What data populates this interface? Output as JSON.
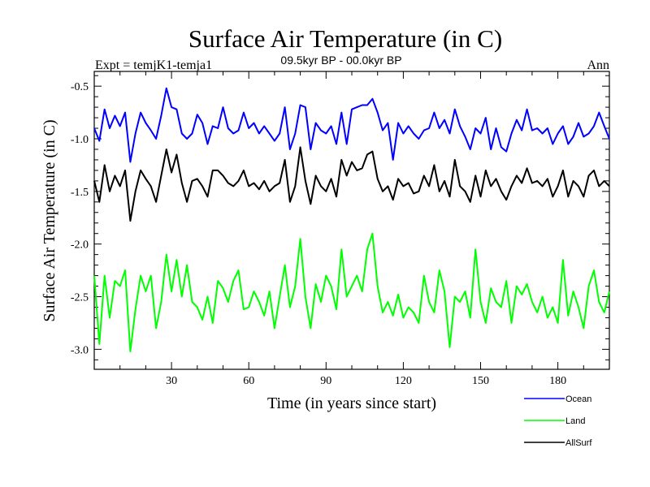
{
  "chart_data": {
    "type": "line",
    "title": "Surface Air Temperature (in C)",
    "subtitle_left": "Expt = temjK1-temja1",
    "subtitle_center": "09.5kyr BP - 00.0kyr BP",
    "subtitle_right": "Ann",
    "xlabel": "Time (in years since start)",
    "ylabel": "Surface Air Temperature (in C)",
    "xlim": [
      0,
      200
    ],
    "ylim": [
      -3.19,
      -0.36
    ],
    "xticks": [
      30,
      60,
      90,
      120,
      150,
      180
    ],
    "xtick_labels": [
      "30",
      "60",
      "90",
      "120",
      "150",
      "180"
    ],
    "yticks": [
      -0.5,
      -1.0,
      -1.5,
      -2.0,
      -2.5,
      -3.0
    ],
    "ytick_labels": [
      "-0.5",
      "-1.0",
      "-1.5",
      "-2.0",
      "-2.5",
      "-3.0"
    ],
    "grid": false,
    "legend_placement": "bottom-right outside",
    "x_step": 2,
    "series": [
      {
        "name": "Ocean",
        "color": "#0000ff",
        "values": [
          -0.9,
          -1.02,
          -0.72,
          -0.9,
          -0.78,
          -0.88,
          -0.75,
          -1.22,
          -0.95,
          -0.75,
          -0.85,
          -0.92,
          -1.0,
          -0.78,
          -0.52,
          -0.7,
          -0.72,
          -0.95,
          -1.0,
          -0.95,
          -0.77,
          -0.85,
          -1.05,
          -0.88,
          -0.9,
          -0.7,
          -0.9,
          -0.95,
          -0.92,
          -0.75,
          -0.9,
          -0.85,
          -0.95,
          -0.88,
          -0.95,
          -1.02,
          -0.95,
          -0.7,
          -1.1,
          -0.95,
          -0.68,
          -0.7,
          -1.1,
          -0.85,
          -0.92,
          -0.95,
          -0.88,
          -1.05,
          -0.75,
          -1.05,
          -0.72,
          -0.7,
          -0.68,
          -0.68,
          -0.62,
          -0.75,
          -0.92,
          -0.85,
          -1.2,
          -0.85,
          -0.95,
          -0.88,
          -0.95,
          -1.0,
          -0.92,
          -0.9,
          -0.75,
          -0.9,
          -0.82,
          -0.95,
          -0.72,
          -0.88,
          -0.98,
          -1.1,
          -0.9,
          -0.95,
          -0.8,
          -1.1,
          -0.9,
          -1.08,
          -1.12,
          -0.95,
          -0.82,
          -0.92,
          -0.72,
          -0.92,
          -0.9,
          -0.95,
          -0.9,
          -1.05,
          -0.95,
          -0.88,
          -1.05,
          -0.98,
          -0.85,
          -0.98,
          -0.95,
          -0.88,
          -0.75,
          -0.88,
          -1.0
        ]
      },
      {
        "name": "Land",
        "color": "#00ff00",
        "values": [
          -2.3,
          -2.95,
          -2.3,
          -2.7,
          -2.35,
          -2.4,
          -2.25,
          -3.02,
          -2.62,
          -2.3,
          -2.45,
          -2.3,
          -2.8,
          -2.55,
          -2.1,
          -2.45,
          -2.15,
          -2.5,
          -2.2,
          -2.55,
          -2.6,
          -2.72,
          -2.5,
          -2.75,
          -2.35,
          -2.42,
          -2.55,
          -2.35,
          -2.25,
          -2.62,
          -2.6,
          -2.45,
          -2.55,
          -2.68,
          -2.45,
          -2.8,
          -2.5,
          -2.2,
          -2.6,
          -2.4,
          -1.95,
          -2.5,
          -2.8,
          -2.38,
          -2.55,
          -2.3,
          -2.4,
          -2.62,
          -2.05,
          -2.5,
          -2.4,
          -2.3,
          -2.45,
          -2.05,
          -1.9,
          -2.4,
          -2.65,
          -2.55,
          -2.68,
          -2.48,
          -2.7,
          -2.6,
          -2.65,
          -2.75,
          -2.3,
          -2.55,
          -2.65,
          -2.25,
          -2.45,
          -2.98,
          -2.5,
          -2.55,
          -2.45,
          -2.7,
          -2.05,
          -2.55,
          -2.75,
          -2.42,
          -2.55,
          -2.6,
          -2.35,
          -2.75,
          -2.4,
          -2.48,
          -2.38,
          -2.55,
          -2.65,
          -2.5,
          -2.7,
          -2.6,
          -2.75,
          -2.15,
          -2.68,
          -2.45,
          -2.6,
          -2.8,
          -2.4,
          -2.25,
          -2.55,
          -2.65,
          -2.45
        ]
      },
      {
        "name": "AllSurf",
        "color": "#000000",
        "values": [
          -1.4,
          -1.6,
          -1.25,
          -1.5,
          -1.35,
          -1.45,
          -1.3,
          -1.78,
          -1.5,
          -1.3,
          -1.38,
          -1.45,
          -1.6,
          -1.35,
          -1.1,
          -1.32,
          -1.15,
          -1.42,
          -1.6,
          -1.4,
          -1.38,
          -1.45,
          -1.55,
          -1.3,
          -1.3,
          -1.35,
          -1.42,
          -1.45,
          -1.4,
          -1.3,
          -1.45,
          -1.42,
          -1.48,
          -1.4,
          -1.5,
          -1.45,
          -1.42,
          -1.2,
          -1.6,
          -1.45,
          -1.08,
          -1.4,
          -1.62,
          -1.35,
          -1.45,
          -1.5,
          -1.38,
          -1.55,
          -1.2,
          -1.35,
          -1.22,
          -1.3,
          -1.28,
          -1.15,
          -1.12,
          -1.38,
          -1.5,
          -1.45,
          -1.58,
          -1.38,
          -1.45,
          -1.42,
          -1.52,
          -1.5,
          -1.35,
          -1.45,
          -1.25,
          -1.5,
          -1.4,
          -1.55,
          -1.2,
          -1.45,
          -1.5,
          -1.6,
          -1.35,
          -1.55,
          -1.3,
          -1.45,
          -1.38,
          -1.5,
          -1.58,
          -1.45,
          -1.35,
          -1.42,
          -1.28,
          -1.42,
          -1.4,
          -1.45,
          -1.38,
          -1.55,
          -1.45,
          -1.3,
          -1.55,
          -1.4,
          -1.45,
          -1.55,
          -1.35,
          -1.3,
          -1.45,
          -1.4,
          -1.45
        ]
      }
    ]
  }
}
